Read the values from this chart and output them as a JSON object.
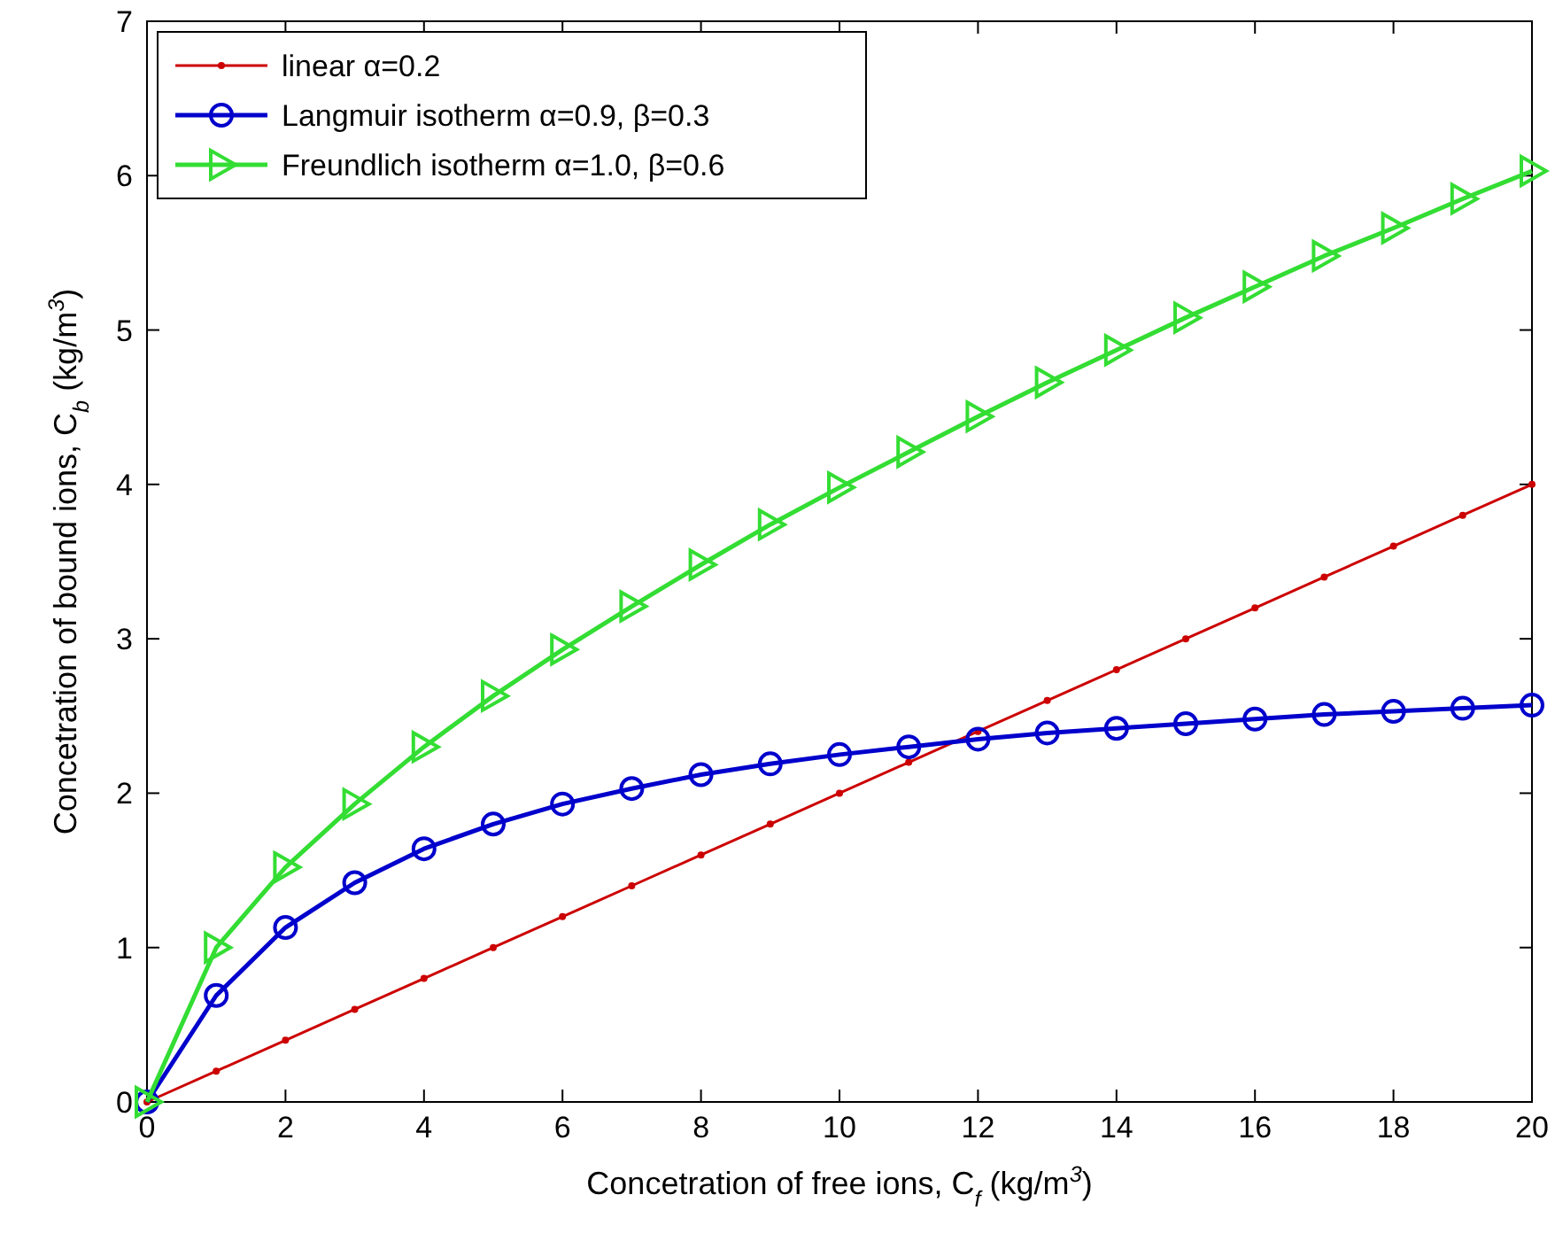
{
  "chart_data": {
    "type": "line",
    "xlabel": "Concetration of free ions, C$_{f}$ (kg/m$^{3}$)",
    "ylabel": "Concetration of bound ions, C$_{b}$ (kg/m$^{3}$)",
    "x": [
      0,
      1,
      2,
      3,
      4,
      5,
      6,
      7,
      8,
      9,
      10,
      11,
      12,
      13,
      14,
      15,
      16,
      17,
      18,
      19,
      20
    ],
    "series": [
      {
        "name": "linear α=0.2",
        "color": "#cc0000",
        "marker": "circle",
        "values": [
          0,
          0.2,
          0.4,
          0.6,
          0.8,
          1.0,
          1.2,
          1.4,
          1.6,
          1.8,
          2.0,
          2.2,
          2.4,
          2.6,
          2.8,
          3.0,
          3.2,
          3.4,
          3.6,
          3.8,
          4.0
        ]
      },
      {
        "name": "Langmuir isotherm α=0.9, β=0.3",
        "color": "#0000cc",
        "marker": "circle",
        "values": [
          0,
          0.69,
          1.13,
          1.42,
          1.64,
          1.8,
          1.93,
          2.03,
          2.12,
          2.19,
          2.25,
          2.3,
          2.35,
          2.39,
          2.42,
          2.45,
          2.48,
          2.51,
          2.53,
          2.55,
          2.57
        ]
      },
      {
        "name": "Freundlich isotherm α=1.0, β=0.6",
        "color": "#33dd33",
        "marker": "triangle",
        "values": [
          0,
          1,
          1.52,
          1.93,
          2.3,
          2.63,
          2.93,
          3.21,
          3.48,
          3.74,
          3.98,
          4.21,
          4.44,
          4.66,
          4.87,
          5.08,
          5.28,
          5.48,
          5.66,
          5.85,
          6.03
        ]
      }
    ],
    "xlim": [
      0,
      20
    ],
    "xticks": [
      0,
      2,
      4,
      6,
      8,
      10,
      12,
      14,
      16,
      18,
      20
    ],
    "ylim": [
      0,
      7
    ],
    "yticks": [
      0,
      1,
      2,
      3,
      4,
      5,
      6,
      7
    ],
    "grid": false,
    "legend": "top left"
  }
}
